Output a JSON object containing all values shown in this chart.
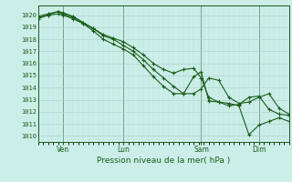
{
  "xlabel": "Pression niveau de la mer( hPa )",
  "background_color": "#cceee8",
  "grid_major_color": "#aacccc",
  "grid_minor_color": "#bbdddd",
  "line_color": "#1a5c1a",
  "ylim": [
    1009.5,
    1020.8
  ],
  "xlim": [
    0,
    100
  ],
  "xticks_pos": [
    10,
    34,
    65,
    88
  ],
  "xticklabels": [
    "Ven",
    "Lun",
    "Sam",
    "Dim"
  ],
  "yticks": [
    1010,
    1011,
    1012,
    1013,
    1014,
    1015,
    1016,
    1017,
    1018,
    1019,
    1020
  ],
  "line1_x": [
    0,
    4,
    8,
    10,
    14,
    18,
    22,
    26,
    30,
    34,
    38,
    42,
    46,
    50,
    54,
    58,
    62,
    65,
    68,
    72,
    76,
    80,
    84,
    88,
    92,
    96,
    100
  ],
  "line1_y": [
    1019.8,
    1020.0,
    1020.1,
    1020.0,
    1019.7,
    1019.3,
    1018.9,
    1018.4,
    1018.1,
    1017.8,
    1017.3,
    1016.7,
    1016.0,
    1015.5,
    1015.2,
    1015.5,
    1015.6,
    1014.8,
    1013.2,
    1012.8,
    1012.7,
    1012.5,
    1010.1,
    1010.9,
    1011.2,
    1011.5,
    1011.2
  ],
  "line2_x": [
    0,
    4,
    8,
    10,
    14,
    18,
    22,
    26,
    30,
    34,
    38,
    42,
    46,
    50,
    54,
    58,
    62,
    65,
    68,
    72,
    76,
    80,
    84,
    88,
    92,
    96,
    100
  ],
  "line2_y": [
    1019.7,
    1020.0,
    1020.3,
    1020.2,
    1019.9,
    1019.4,
    1018.9,
    1018.3,
    1018.0,
    1017.5,
    1017.0,
    1016.3,
    1015.5,
    1014.8,
    1014.1,
    1013.5,
    1013.5,
    1013.9,
    1014.8,
    1014.6,
    1013.2,
    1012.7,
    1012.8,
    1013.2,
    1013.5,
    1012.3,
    1011.8
  ],
  "line3_x": [
    0,
    4,
    8,
    10,
    14,
    18,
    22,
    26,
    30,
    34,
    38,
    42,
    46,
    50,
    54,
    58,
    62,
    65,
    68,
    72,
    76,
    80,
    84,
    88,
    92,
    96,
    100
  ],
  "line3_y": [
    1019.9,
    1020.1,
    1020.3,
    1020.1,
    1019.8,
    1019.3,
    1018.7,
    1018.0,
    1017.6,
    1017.2,
    1016.7,
    1015.8,
    1014.9,
    1014.1,
    1013.5,
    1013.5,
    1014.9,
    1015.3,
    1012.9,
    1012.8,
    1012.5,
    1012.6,
    1013.2,
    1013.3,
    1012.2,
    1011.8,
    1011.7
  ],
  "marker": "+",
  "markersize": 3,
  "linewidth": 0.8
}
